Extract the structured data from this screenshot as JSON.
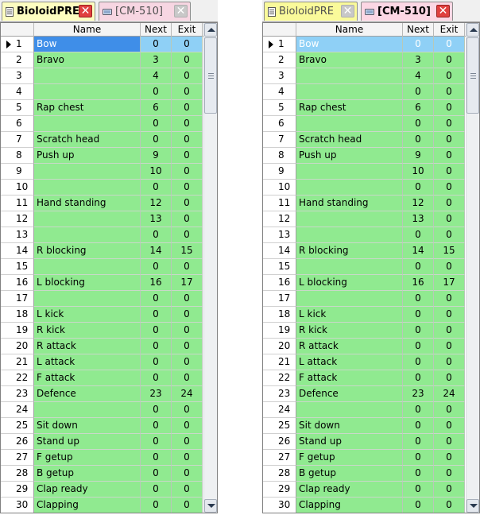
{
  "colors": {
    "row_bg": "#90ea90",
    "selected_bg": "#8fd0f6",
    "close_active": "#e0403f"
  },
  "left": {
    "tabs": [
      {
        "label": "BioloidPRE",
        "icon": "document-icon",
        "active": true
      },
      {
        "label": "[CM-510]",
        "icon": "device-icon",
        "active": false
      }
    ],
    "columns": {
      "name": "Name",
      "next": "Next",
      "exit": "Exit"
    }
  },
  "right": {
    "tabs": [
      {
        "label": "BioloidPRE",
        "icon": "document-icon",
        "active": false
      },
      {
        "label": "[CM-510]",
        "icon": "device-icon",
        "active": true
      }
    ],
    "columns": {
      "name": "Name",
      "next": "Next",
      "exit": "Exit"
    }
  },
  "rows": [
    {
      "idx": "1",
      "name": "Bow",
      "next": "0",
      "exit": "0"
    },
    {
      "idx": "2",
      "name": "Bravo",
      "next": "3",
      "exit": "0"
    },
    {
      "idx": "3",
      "name": "",
      "next": "4",
      "exit": "0"
    },
    {
      "idx": "4",
      "name": "",
      "next": "0",
      "exit": "0"
    },
    {
      "idx": "5",
      "name": "Rap chest",
      "next": "6",
      "exit": "0"
    },
    {
      "idx": "6",
      "name": "",
      "next": "0",
      "exit": "0"
    },
    {
      "idx": "7",
      "name": "Scratch head",
      "next": "0",
      "exit": "0"
    },
    {
      "idx": "8",
      "name": "Push up",
      "next": "9",
      "exit": "0"
    },
    {
      "idx": "9",
      "name": "",
      "next": "10",
      "exit": "0"
    },
    {
      "idx": "10",
      "name": "",
      "next": "0",
      "exit": "0"
    },
    {
      "idx": "11",
      "name": "Hand standing",
      "next": "12",
      "exit": "0"
    },
    {
      "idx": "12",
      "name": "",
      "next": "13",
      "exit": "0"
    },
    {
      "idx": "13",
      "name": "",
      "next": "0",
      "exit": "0"
    },
    {
      "idx": "14",
      "name": "R blocking",
      "next": "14",
      "exit": "15"
    },
    {
      "idx": "15",
      "name": "",
      "next": "0",
      "exit": "0"
    },
    {
      "idx": "16",
      "name": "L blocking",
      "next": "16",
      "exit": "17"
    },
    {
      "idx": "17",
      "name": "",
      "next": "0",
      "exit": "0"
    },
    {
      "idx": "18",
      "name": "L kick",
      "next": "0",
      "exit": "0"
    },
    {
      "idx": "19",
      "name": "R kick",
      "next": "0",
      "exit": "0"
    },
    {
      "idx": "20",
      "name": "R attack",
      "next": "0",
      "exit": "0"
    },
    {
      "idx": "21",
      "name": "L attack",
      "next": "0",
      "exit": "0"
    },
    {
      "idx": "22",
      "name": "F attack",
      "next": "0",
      "exit": "0"
    },
    {
      "idx": "23",
      "name": "Defence",
      "next": "23",
      "exit": "24"
    },
    {
      "idx": "24",
      "name": "",
      "next": "0",
      "exit": "0"
    },
    {
      "idx": "25",
      "name": "Sit down",
      "next": "0",
      "exit": "0"
    },
    {
      "idx": "26",
      "name": "Stand up",
      "next": "0",
      "exit": "0"
    },
    {
      "idx": "27",
      "name": "F getup",
      "next": "0",
      "exit": "0"
    },
    {
      "idx": "28",
      "name": "B getup",
      "next": "0",
      "exit": "0"
    },
    {
      "idx": "29",
      "name": "Clap ready",
      "next": "0",
      "exit": "0"
    },
    {
      "idx": "30",
      "name": "Clapping",
      "next": "0",
      "exit": "0"
    }
  ]
}
